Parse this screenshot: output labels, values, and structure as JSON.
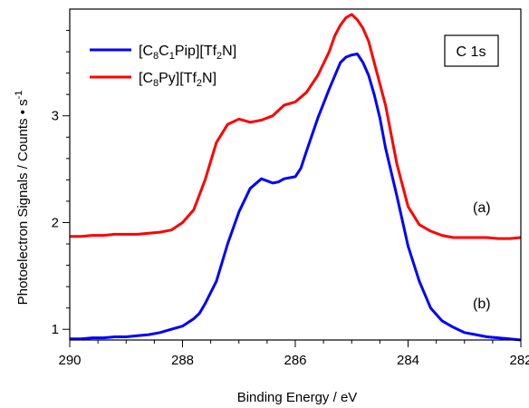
{
  "chart_data": {
    "type": "line",
    "xlabel": "Binding Energy / eV",
    "ylabel": "Photoelectron Signals / Counts • s",
    "ylabel_superscript": "-1",
    "xlim": [
      290.0,
      282.0
    ],
    "ylim": [
      0.9,
      4.0
    ],
    "x_reversed": true,
    "x_ticks": [
      290,
      288,
      286,
      284,
      282
    ],
    "y_ticks": [
      1,
      2,
      3
    ],
    "grid": false,
    "legend_position": "top-left",
    "legend": [
      {
        "base": "[C",
        "s1": "8",
        "mid": "C",
        "s2": "1",
        "rest": "Pip][Tf",
        "s3": "2",
        "end": "N]",
        "color": "#0000ff"
      },
      {
        "base": "[C",
        "s1": "8",
        "mid": "Py][Tf",
        "s2": "2",
        "rest": "N]",
        "color": "#ff0000"
      }
    ],
    "label_box": "C 1s",
    "annotations": [
      "(a)",
      "(b)"
    ],
    "series": [
      {
        "color": "#0000ff",
        "x": [
          290.0,
          289.8,
          289.6,
          289.4,
          289.2,
          289.0,
          288.8,
          288.6,
          288.4,
          288.2,
          288.0,
          287.8,
          287.7,
          287.6,
          287.4,
          287.2,
          287.0,
          286.8,
          286.6,
          286.4,
          286.3,
          286.2,
          286.0,
          285.9,
          285.8,
          285.6,
          285.4,
          285.2,
          285.1,
          285.0,
          284.9,
          284.8,
          284.7,
          284.6,
          284.5,
          284.4,
          284.2,
          284.0,
          283.8,
          283.6,
          283.4,
          283.2,
          283.0,
          282.8,
          282.6,
          282.4,
          282.2,
          282.0
        ],
        "y": [
          0.91,
          0.91,
          0.92,
          0.92,
          0.93,
          0.93,
          0.94,
          0.95,
          0.97,
          1.0,
          1.03,
          1.1,
          1.15,
          1.24,
          1.45,
          1.8,
          2.1,
          2.32,
          2.41,
          2.37,
          2.38,
          2.41,
          2.43,
          2.51,
          2.67,
          2.98,
          3.25,
          3.5,
          3.55,
          3.57,
          3.58,
          3.5,
          3.38,
          3.2,
          2.98,
          2.7,
          2.25,
          1.78,
          1.45,
          1.2,
          1.08,
          1.02,
          0.97,
          0.95,
          0.93,
          0.92,
          0.91,
          0.9
        ]
      },
      {
        "color": "#ff0000",
        "x": [
          290.0,
          289.8,
          289.6,
          289.4,
          289.2,
          289.0,
          288.8,
          288.6,
          288.4,
          288.2,
          288.0,
          287.8,
          287.6,
          287.4,
          287.2,
          287.0,
          286.8,
          286.6,
          286.4,
          286.2,
          286.0,
          285.8,
          285.6,
          285.4,
          285.3,
          285.2,
          285.1,
          285.0,
          284.9,
          284.8,
          284.7,
          284.6,
          284.4,
          284.2,
          284.0,
          283.8,
          283.6,
          283.4,
          283.2,
          283.0,
          282.8,
          282.6,
          282.4,
          282.2,
          282.0
        ],
        "y": [
          1.87,
          1.87,
          1.88,
          1.88,
          1.89,
          1.89,
          1.89,
          1.9,
          1.91,
          1.93,
          2.0,
          2.12,
          2.4,
          2.75,
          2.92,
          2.97,
          2.94,
          2.96,
          3.0,
          3.1,
          3.13,
          3.22,
          3.38,
          3.6,
          3.75,
          3.85,
          3.92,
          3.95,
          3.9,
          3.82,
          3.7,
          3.5,
          3.1,
          2.55,
          2.15,
          1.98,
          1.92,
          1.88,
          1.86,
          1.86,
          1.86,
          1.86,
          1.85,
          1.85,
          1.86
        ]
      }
    ]
  }
}
